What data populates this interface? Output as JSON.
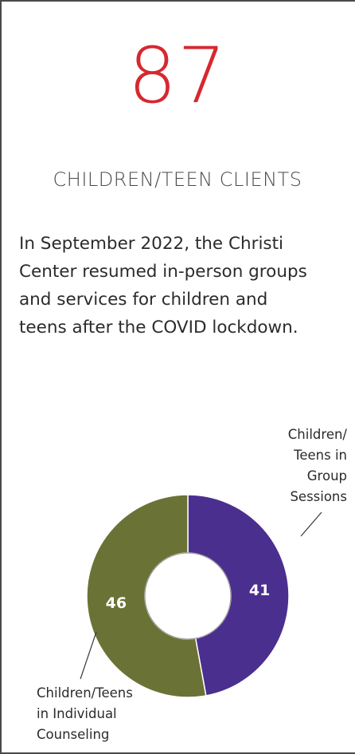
{
  "stat": {
    "value": "87",
    "label": "CHILDREN/TEEN CLIENTS",
    "description_lines": [
      "In September 2022, the Christi",
      "Center resumed in-person groups",
      "and services for children and",
      "teens after the COVID lockdown."
    ]
  },
  "chart_data": {
    "type": "pie",
    "variant": "donut",
    "start": "top",
    "direction": "clockwise",
    "slices": [
      {
        "label_lines": [
          "Children/",
          "Teens in",
          "Group",
          "Sessions"
        ],
        "value": 41,
        "value_label": "41",
        "color": "#4a2f8f"
      },
      {
        "label_lines": [
          "Children/Teens",
          "in Individual",
          "Counseling"
        ],
        "value": 46,
        "value_label": "46",
        "color": "#6b7235"
      }
    ]
  },
  "colors": {
    "accent": "#d7282f",
    "text": "#2b2b2b",
    "border": "#4a4a4a"
  }
}
